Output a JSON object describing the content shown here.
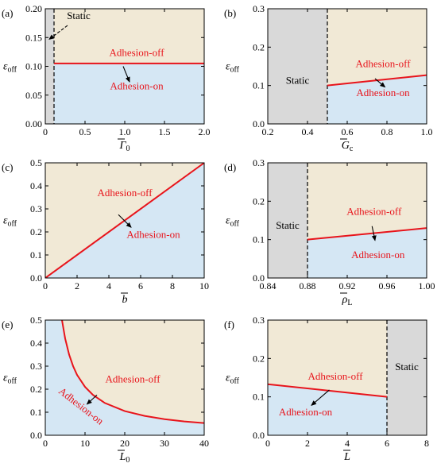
{
  "colors": {
    "static": "#d9d9d9",
    "adhesion_off": "#f1e9d6",
    "adhesion_on": "#d5e7f4",
    "boundary": "#e8141b",
    "label_red": "#e8141b"
  },
  "chart_data": [
    {
      "type": "area",
      "panel": "(a)",
      "xlabel_main": "Γ",
      "xlabel_sub": "0",
      "ylabel_main": "ε",
      "ylabel_sub": "off",
      "xlim": [
        0,
        2.0
      ],
      "ylim": [
        0,
        0.2
      ],
      "xticks": [
        0,
        0.5,
        1.0,
        1.5,
        2.0
      ],
      "xtick_labels": [
        "0",
        "0.5",
        "1.0",
        "1.5",
        "2.0"
      ],
      "yticks": [
        0,
        0.05,
        0.1,
        0.15,
        0.2
      ],
      "ytick_labels": [
        "0.00",
        "0.05",
        "0.10",
        "0.15",
        "0.20"
      ],
      "static": {
        "x_from": 0,
        "x_to": 0.11,
        "side": "left"
      },
      "boundary": [
        [
          0.11,
          0.105
        ],
        [
          2.0,
          0.105
        ]
      ],
      "labels": {
        "static": "Static",
        "off": "Adhesion-off",
        "on": "Adhesion-on"
      }
    },
    {
      "type": "area",
      "panel": "(b)",
      "xlabel_main": "G",
      "xlabel_sub": "c",
      "ylabel_main": "ε",
      "ylabel_sub": "off",
      "xlim": [
        0.2,
        1.0
      ],
      "ylim": [
        0,
        0.3
      ],
      "xticks": [
        0.2,
        0.4,
        0.6,
        0.8,
        1.0
      ],
      "xtick_labels": [
        "0.2",
        "0.4",
        "0.6",
        "0.8",
        "1.0"
      ],
      "yticks": [
        0,
        0.1,
        0.2,
        0.3
      ],
      "ytick_labels": [
        "0.0",
        "0.1",
        "0.2",
        "0.3"
      ],
      "static": {
        "x_from": 0.2,
        "x_to": 0.5,
        "side": "left"
      },
      "boundary": [
        [
          0.5,
          0.1
        ],
        [
          1.0,
          0.127
        ]
      ],
      "labels": {
        "static": "Static",
        "off": "Adhesion-off",
        "on": "Adhesion-on"
      }
    },
    {
      "type": "area",
      "panel": "(c)",
      "xlabel_main": "b",
      "xlabel_sub": "",
      "ylabel_main": "ε",
      "ylabel_sub": "off",
      "xlim": [
        0,
        10
      ],
      "ylim": [
        0,
        0.5
      ],
      "xticks": [
        0,
        2,
        4,
        6,
        8,
        10
      ],
      "xtick_labels": [
        "0",
        "2",
        "4",
        "6",
        "8",
        "10"
      ],
      "yticks": [
        0,
        0.1,
        0.2,
        0.3,
        0.4,
        0.5
      ],
      "ytick_labels": [
        "0.0",
        "0.1",
        "0.2",
        "0.3",
        "0.4",
        "0.5"
      ],
      "static": null,
      "boundary": [
        [
          0,
          0
        ],
        [
          10,
          0.5
        ]
      ],
      "labels": {
        "static": "",
        "off": "Adhesion-off",
        "on": "Adhesion-on"
      }
    },
    {
      "type": "area",
      "panel": "(d)",
      "xlabel_main": "ρ",
      "xlabel_sub": "L",
      "ylabel_main": "ε",
      "ylabel_sub": "off",
      "xlim": [
        0.84,
        1.0
      ],
      "ylim": [
        0,
        0.3
      ],
      "xticks": [
        0.84,
        0.88,
        0.92,
        0.96,
        1.0
      ],
      "xtick_labels": [
        "0.84",
        "0.88",
        "0.92",
        "0.96",
        "1.00"
      ],
      "yticks": [
        0,
        0.1,
        0.2,
        0.3
      ],
      "ytick_labels": [
        "0.0",
        "0.1",
        "0.2",
        "0.3"
      ],
      "static": {
        "x_from": 0.84,
        "x_to": 0.88,
        "side": "left"
      },
      "boundary": [
        [
          0.88,
          0.1
        ],
        [
          1.0,
          0.13
        ]
      ],
      "labels": {
        "static": "Static",
        "off": "Adhesion-off",
        "on": "Adhesion-on"
      }
    },
    {
      "type": "area",
      "panel": "(e)",
      "xlabel_main": "L",
      "xlabel_sub": "0",
      "ylabel_main": "ε",
      "ylabel_sub": "off",
      "xlim": [
        0,
        40
      ],
      "ylim": [
        0,
        0.5
      ],
      "xticks": [
        0,
        10,
        20,
        30,
        40
      ],
      "xtick_labels": [
        "0",
        "10",
        "20",
        "30",
        "40"
      ],
      "yticks": [
        0,
        0.1,
        0.2,
        0.3,
        0.4,
        0.5
      ],
      "ytick_labels": [
        "0.0",
        "0.1",
        "0.2",
        "0.3",
        "0.4",
        "0.5"
      ],
      "static": null,
      "boundary": [
        [
          4.2,
          0.5
        ],
        [
          5,
          0.42
        ],
        [
          6,
          0.35
        ],
        [
          7,
          0.3
        ],
        [
          8,
          0.262
        ],
        [
          10,
          0.21
        ],
        [
          12,
          0.175
        ],
        [
          15,
          0.14
        ],
        [
          20,
          0.105
        ],
        [
          25,
          0.084
        ],
        [
          30,
          0.07
        ],
        [
          35,
          0.06
        ],
        [
          40,
          0.053
        ]
      ],
      "labels": {
        "static": "",
        "off": "Adhesion-off",
        "on": "Adhesion-on"
      }
    },
    {
      "type": "area",
      "panel": "(f)",
      "xlabel_main": "L",
      "xlabel_sub": "",
      "ylabel_main": "ε",
      "ylabel_sub": "off",
      "xlim": [
        0,
        8
      ],
      "ylim": [
        0,
        0.3
      ],
      "xticks": [
        0,
        2,
        4,
        6,
        8
      ],
      "xtick_labels": [
        "0",
        "2",
        "4",
        "6",
        "8"
      ],
      "yticks": [
        0,
        0.1,
        0.2,
        0.3
      ],
      "ytick_labels": [
        "0.0",
        "0.1",
        "0.2",
        "0.3"
      ],
      "static": {
        "x_from": 6,
        "x_to": 8,
        "side": "right"
      },
      "boundary": [
        [
          0,
          0.133
        ],
        [
          6,
          0.1
        ]
      ],
      "labels": {
        "static": "Static",
        "off": "Adhesion-off",
        "on": "Adhesion-on"
      }
    }
  ]
}
